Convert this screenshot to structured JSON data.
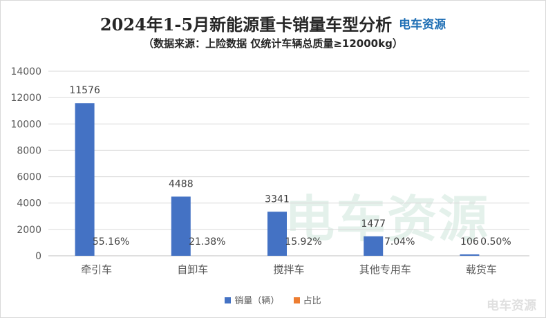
{
  "title": "2024年1-5月新能源重卡销量车型分析",
  "logo_text": "电车资源",
  "subtitle": "（数据来源：上险数据 仅统计车辆总质量≥12000kg）",
  "watermark": "电车资源",
  "colors": {
    "series1": "#4472c4",
    "series2": "#ed7d31",
    "grid": "#d9d9d9",
    "axis_text": "#595959"
  },
  "chart_data": {
    "type": "bar",
    "categories": [
      "牵引车",
      "自卸车",
      "搅拌车",
      "其他专用车",
      "载货车"
    ],
    "series": [
      {
        "name": "销量（辆）",
        "values": [
          11576,
          4488,
          3341,
          1477,
          106
        ]
      },
      {
        "name": "占比",
        "values": [
          0.5516,
          0.2138,
          0.1592,
          0.0704,
          0.005
        ],
        "labels": [
          "55.16%",
          "21.38%",
          "15.92%",
          "7.04%",
          "0.50%"
        ]
      }
    ],
    "ylim": [
      0,
      14000
    ],
    "yticks": [
      0,
      2000,
      4000,
      6000,
      8000,
      10000,
      12000,
      14000
    ],
    "grid": true,
    "legend": "bottom"
  }
}
